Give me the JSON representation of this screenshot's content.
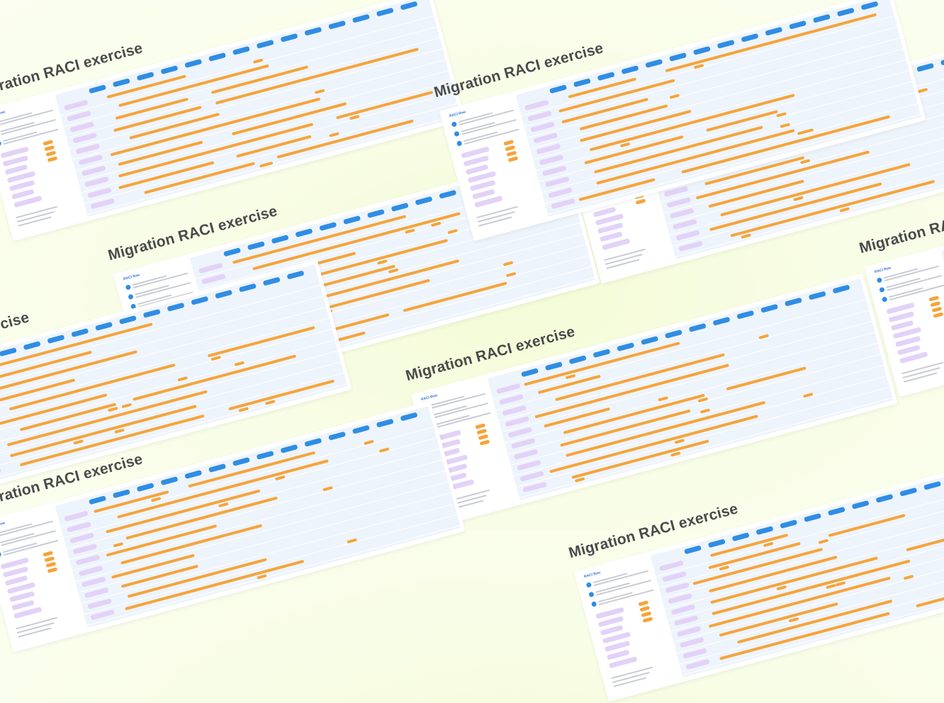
{
  "title": "Migration RACI exercise",
  "raci_label": "RACI flow",
  "tiles": [
    {
      "x": -40,
      "y": 120,
      "rotate": -15
    },
    {
      "x": 150,
      "y": 350,
      "rotate": -15
    },
    {
      "x": 570,
      "y": 520,
      "rotate": -15
    },
    {
      "x": 790,
      "y": 180,
      "rotate": -15
    },
    {
      "x": 1210,
      "y": 340,
      "rotate": -15
    },
    {
      "x": -40,
      "y": 700,
      "rotate": -15
    },
    {
      "x": 800,
      "y": 770,
      "rotate": -15
    },
    {
      "x": -200,
      "y": 500,
      "rotate": -15
    },
    {
      "x": 610,
      "y": 120,
      "rotate": -15
    }
  ],
  "colors": {
    "accent": "#2f8de4",
    "bar": "#f5a43a",
    "purple": "#e3d2f7",
    "title": "#4a4a4a"
  }
}
